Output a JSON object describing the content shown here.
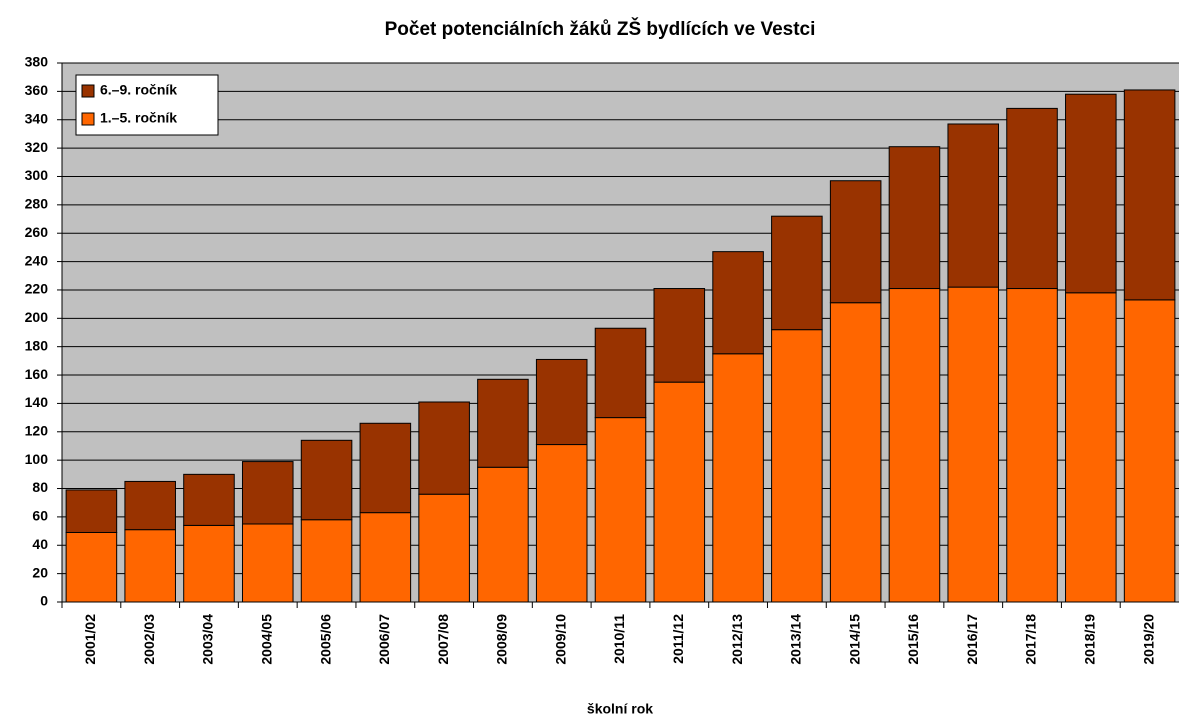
{
  "chart_data": {
    "type": "stacked_bar",
    "title": "Počet potenciálních žáků ZŠ bydlících ve Vestci",
    "x_label": "školní rok",
    "categories": [
      "2001/02",
      "2002/03",
      "2003/04",
      "2004/05",
      "2005/06",
      "2006/07",
      "2007/08",
      "2008/09",
      "2009/10",
      "2010/11",
      "2011/12",
      "2012/13",
      "2013/14",
      "2014/15",
      "2015/16",
      "2016/17",
      "2017/18",
      "2018/19",
      "2019/20"
    ],
    "series": [
      {
        "name": "1.–5. ročník",
        "color": "#ff6600",
        "values": [
          49,
          51,
          54,
          55,
          58,
          63,
          76,
          95,
          111,
          130,
          155,
          175,
          192,
          211,
          221,
          222,
          221,
          218,
          213
        ]
      },
      {
        "name": "6.–9. ročník",
        "color": "#993300",
        "values": [
          30,
          34,
          36,
          44,
          56,
          63,
          65,
          62,
          60,
          63,
          66,
          72,
          80,
          86,
          100,
          115,
          127,
          140,
          148
        ]
      }
    ],
    "ylim": [
      0,
      380
    ],
    "yticks": [
      0,
      20,
      40,
      60,
      80,
      100,
      120,
      140,
      160,
      180,
      200,
      220,
      240,
      260,
      280,
      300,
      320,
      340,
      360,
      380
    ],
    "grid": true,
    "legend": "top-left",
    "background": "#c0c0c0"
  }
}
